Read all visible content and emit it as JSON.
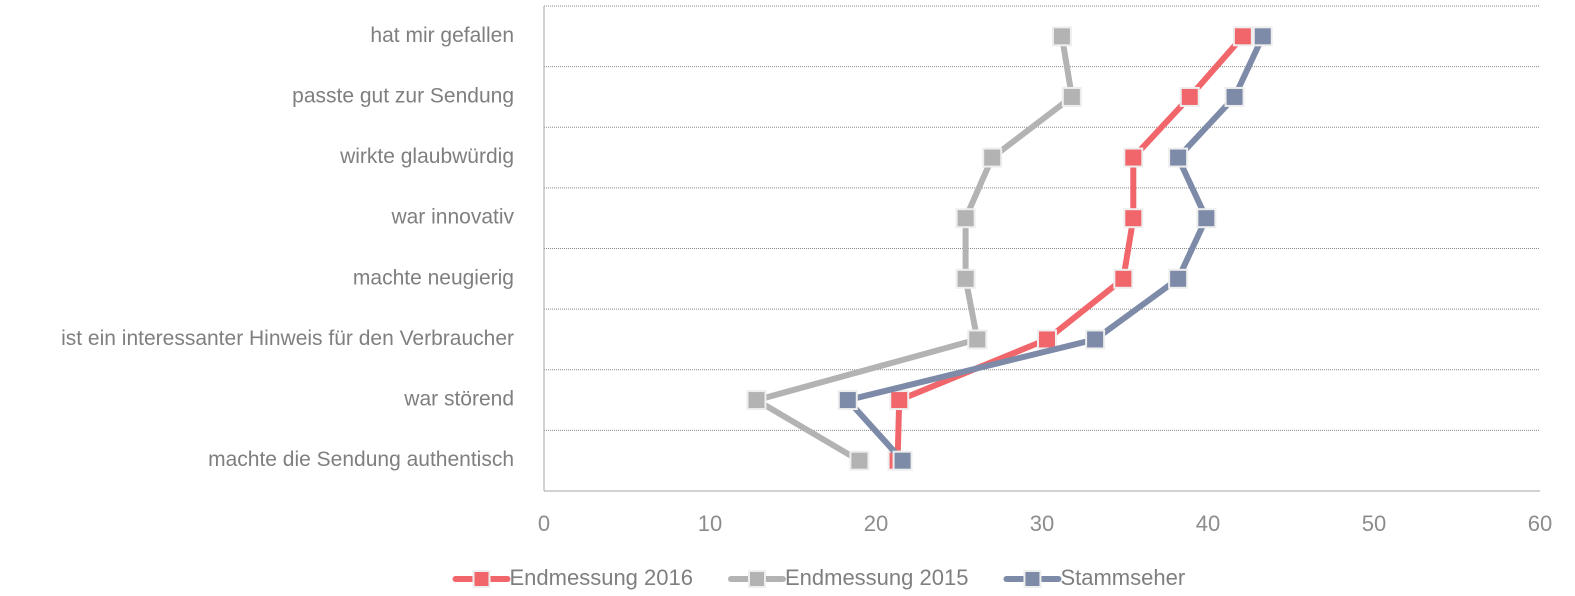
{
  "chart_data": {
    "type": "line",
    "orientation": "horizontal-values",
    "categories": [
      "hat mir gefallen",
      "passte gut zur Sendung",
      "wirkte glaubwürdig",
      "war innovativ",
      "machte neugierig",
      "ist ein interessanter Hinweis für den Verbraucher",
      "war störend",
      "machte die Sendung authentisch"
    ],
    "series": [
      {
        "name": "Endmessung 2016",
        "color": "#f0666b",
        "values": [
          42.1,
          38.9,
          35.5,
          35.5,
          34.9,
          30.3,
          21.4,
          21.3
        ]
      },
      {
        "name": "Endmessung 2015",
        "color": "#b3b3b3",
        "values": [
          31.2,
          31.8,
          27.0,
          25.4,
          25.4,
          26.1,
          12.8,
          19.0
        ]
      },
      {
        "name": "Stammseher",
        "color": "#7d8ba8",
        "values": [
          43.3,
          41.6,
          38.2,
          39.9,
          38.2,
          33.2,
          18.3,
          21.6
        ]
      }
    ],
    "x_ticks": [
      "0",
      "10",
      "20",
      "30",
      "40",
      "50",
      "60"
    ],
    "xlim": [
      0,
      60
    ],
    "grid": true,
    "legend_position": "bottom",
    "title": "",
    "xlabel": "",
    "ylabel": ""
  }
}
